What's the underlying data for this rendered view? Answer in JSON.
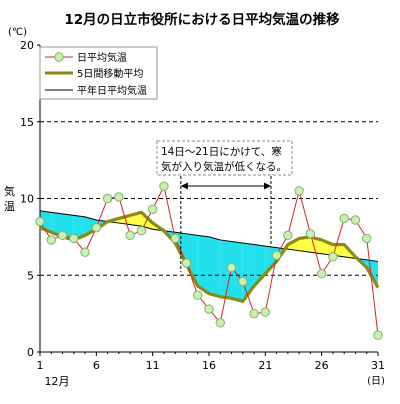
{
  "chart_data": {
    "type": "line",
    "title": "12月の日立市役所における日平均気温の推移",
    "y_unit": "(℃)",
    "ylabel": "気温",
    "x_unit": "(日)",
    "x_sublabel": "12月",
    "ylim": [
      0,
      20
    ],
    "xlim": [
      1,
      31
    ],
    "y_ticks": [
      0,
      5,
      10,
      15,
      20
    ],
    "x_ticks": [
      1,
      6,
      11,
      16,
      21,
      26,
      31
    ],
    "gridlines": [
      5,
      10,
      15
    ],
    "legend": {
      "placement": "top-left",
      "daily": "日平均気温",
      "moving": "5日間移動平均",
      "normal": "平年日平均気温"
    },
    "annotation": {
      "line1": "14日～21日にかけて、寒",
      "line2": "気が入り気温が低くなる。",
      "x_from": 13.5,
      "x_to": 21.5
    },
    "colors": {
      "daily_line": "#dd2222",
      "daily_marker_fill": "#c8f0b0",
      "daily_marker_stroke": "#80b070",
      "moving_line": "#8a8a14",
      "normal_line": "#000000",
      "fill_above": "#ffff44",
      "fill_below": "#22e0ec"
    },
    "series": [
      {
        "name": "日平均気温",
        "x": [
          1,
          2,
          3,
          4,
          5,
          6,
          7,
          8,
          9,
          10,
          11,
          12,
          13,
          14,
          15,
          16,
          17,
          18,
          19,
          20,
          21,
          22,
          23,
          24,
          25,
          26,
          27,
          28,
          29,
          30,
          31
        ],
        "values": [
          8.5,
          7.3,
          7.6,
          7.4,
          6.5,
          8.1,
          10.0,
          10.1,
          7.6,
          7.9,
          9.3,
          10.8,
          7.4,
          5.8,
          3.7,
          2.8,
          1.9,
          5.5,
          4.6,
          2.5,
          2.6,
          6.3,
          7.6,
          10.5,
          7.7,
          5.1,
          6.2,
          8.7,
          8.6,
          7.4,
          1.1
        ]
      },
      {
        "name": "5日間移動平均",
        "x": [
          1,
          2,
          3,
          4,
          5,
          6,
          7,
          8,
          9,
          10,
          11,
          12,
          13,
          14,
          15,
          16,
          17,
          18,
          19,
          20,
          21,
          22,
          23,
          24,
          25,
          26,
          27,
          28,
          29,
          30,
          31
        ],
        "values": [
          8.1,
          7.8,
          7.5,
          7.3,
          7.6,
          8.0,
          8.5,
          8.7,
          8.9,
          9.1,
          8.4,
          7.9,
          7.1,
          5.7,
          4.3,
          3.8,
          3.6,
          3.5,
          3.3,
          4.3,
          5.1,
          5.9,
          7.0,
          7.4,
          7.5,
          7.3,
          7.0,
          7.0,
          6.2,
          5.5,
          4.2
        ]
      },
      {
        "name": "平年日平均気温",
        "x": [
          1,
          2,
          3,
          4,
          5,
          6,
          7,
          8,
          9,
          10,
          11,
          12,
          13,
          14,
          15,
          16,
          17,
          18,
          19,
          20,
          21,
          22,
          23,
          24,
          25,
          26,
          27,
          28,
          29,
          30,
          31
        ],
        "values": [
          9.2,
          9.1,
          9.0,
          8.9,
          8.8,
          8.6,
          8.5,
          8.4,
          8.3,
          8.2,
          8.0,
          7.9,
          7.8,
          7.7,
          7.6,
          7.5,
          7.3,
          7.2,
          7.1,
          7.0,
          6.9,
          6.8,
          6.7,
          6.6,
          6.5,
          6.4,
          6.3,
          6.2,
          6.1,
          6.0,
          5.9
        ]
      }
    ]
  }
}
